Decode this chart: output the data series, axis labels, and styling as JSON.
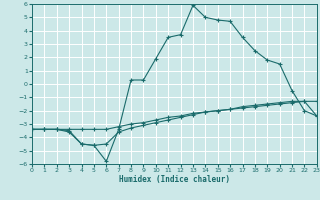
{
  "xlabel": "Humidex (Indice chaleur)",
  "bg_color": "#cce8e8",
  "grid_color": "#ffffff",
  "line_color": "#1a6b6b",
  "x_min": 0,
  "x_max": 23,
  "y_min": -6,
  "y_max": 6,
  "line1_x": [
    0,
    1,
    2,
    3,
    4,
    5,
    6,
    7,
    8,
    9,
    10,
    11,
    12,
    13,
    14,
    15,
    16,
    17,
    18,
    19,
    20,
    21,
    22,
    23
  ],
  "line1_y": [
    -3.4,
    -3.4,
    -3.4,
    -3.6,
    -4.5,
    -4.6,
    -5.8,
    -3.4,
    0.3,
    0.3,
    1.9,
    3.5,
    3.7,
    5.9,
    5.0,
    4.8,
    4.7,
    3.5,
    2.5,
    1.8,
    1.5,
    -0.5,
    -2.0,
    -2.4
  ],
  "line2_x": [
    0,
    1,
    2,
    3,
    4,
    5,
    6,
    7,
    8,
    9,
    10,
    11,
    12,
    13,
    14,
    15,
    16,
    17,
    18,
    19,
    20,
    21,
    22,
    23
  ],
  "line2_y": [
    -3.4,
    -3.4,
    -3.4,
    -3.5,
    -4.5,
    -4.6,
    -4.5,
    -3.6,
    -3.3,
    -3.1,
    -2.9,
    -2.7,
    -2.5,
    -2.3,
    -2.1,
    -2.0,
    -1.9,
    -1.7,
    -1.6,
    -1.5,
    -1.4,
    -1.3,
    -1.3,
    -1.3
  ],
  "line3_x": [
    0,
    1,
    2,
    3,
    4,
    5,
    6,
    7,
    8,
    9,
    10,
    11,
    12,
    13,
    14,
    15,
    16,
    17,
    18,
    19,
    20,
    21,
    22,
    23
  ],
  "line3_y": [
    -3.4,
    -3.4,
    -3.4,
    -3.4,
    -3.4,
    -3.4,
    -3.4,
    -3.2,
    -3.0,
    -2.9,
    -2.7,
    -2.5,
    -2.4,
    -2.2,
    -2.1,
    -2.0,
    -1.9,
    -1.8,
    -1.7,
    -1.6,
    -1.5,
    -1.4,
    -1.3,
    -2.4
  ]
}
